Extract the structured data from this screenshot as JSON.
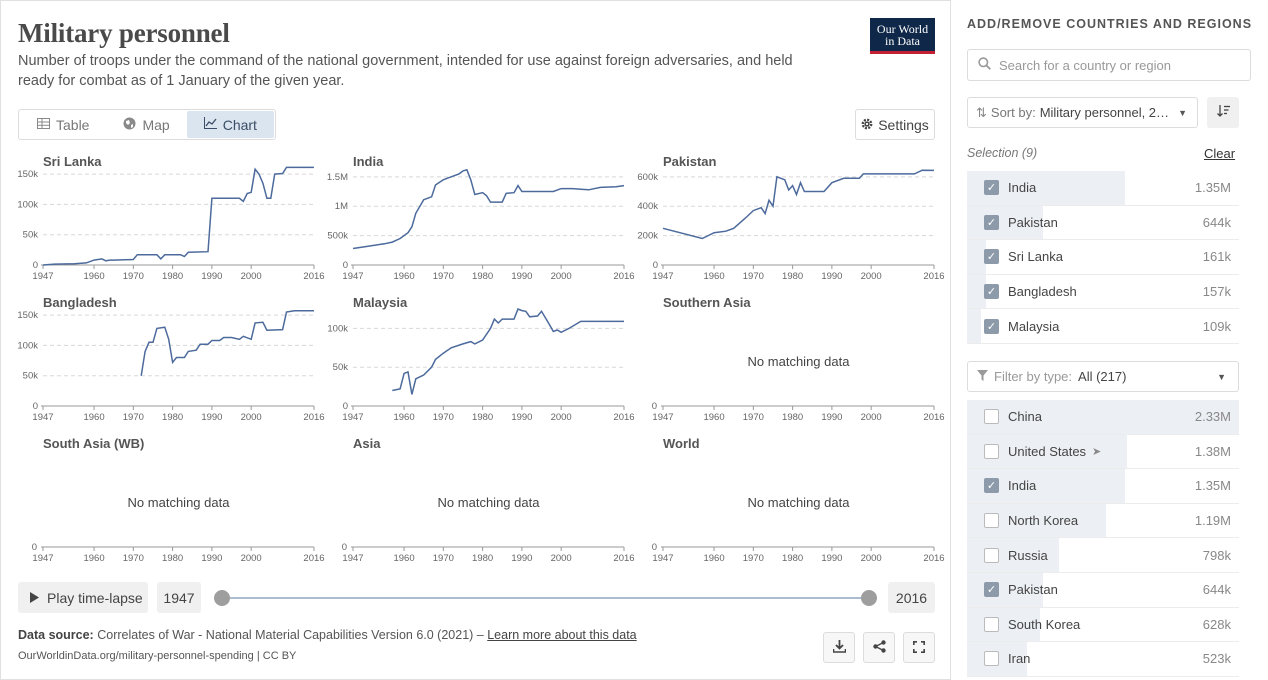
{
  "header": {
    "title": "Military personnel",
    "subtitle": "Number of troops under the command of the national government, intended for use against foreign adversaries, and held ready for combat as of 1 January of the given year.",
    "logo_line1": "Our World",
    "logo_line2": "in Data"
  },
  "tabs": [
    {
      "label": "Table",
      "icon": "table-icon"
    },
    {
      "label": "Map",
      "icon": "globe-icon"
    },
    {
      "label": "Chart",
      "icon": "line-chart-icon",
      "active": true
    }
  ],
  "settings_label": "Settings",
  "no_data_label": "No matching data",
  "chart_data": {
    "type": "line",
    "layout": "small-multiples",
    "x_ticks": [
      "1947",
      "1960",
      "1970",
      "1980",
      "1990",
      "2000",
      "2016"
    ],
    "xlim": [
      1947,
      2016
    ],
    "color": "#4c6a9c",
    "grid": true,
    "panels": [
      {
        "name": "Sri Lanka",
        "ylim": [
          0,
          160000
        ],
        "y_ticks": [
          0,
          50000,
          100000,
          150000
        ],
        "y_tick_labels": [
          "0",
          "50k",
          "100k",
          "150k"
        ],
        "points": [
          [
            1947,
            0
          ],
          [
            1950,
            1500
          ],
          [
            1955,
            2000
          ],
          [
            1958,
            3500
          ],
          [
            1960,
            8000
          ],
          [
            1962,
            10000
          ],
          [
            1963,
            7000
          ],
          [
            1964,
            8000
          ],
          [
            1965,
            8000
          ],
          [
            1970,
            9000
          ],
          [
            1971,
            17000
          ],
          [
            1976,
            17000
          ],
          [
            1977,
            10000
          ],
          [
            1978,
            17000
          ],
          [
            1982,
            17000
          ],
          [
            1983,
            14000
          ],
          [
            1984,
            21000
          ],
          [
            1989,
            22000
          ],
          [
            1990,
            110000
          ],
          [
            1997,
            110000
          ],
          [
            1998,
            105000
          ],
          [
            1999,
            118000
          ],
          [
            2000,
            120000
          ],
          [
            2001,
            158000
          ],
          [
            2002,
            150000
          ],
          [
            2003,
            135000
          ],
          [
            2004,
            110000
          ],
          [
            2005,
            110000
          ],
          [
            2006,
            150000
          ],
          [
            2008,
            151000
          ],
          [
            2009,
            161000
          ],
          [
            2016,
            161000
          ]
        ]
      },
      {
        "name": "India",
        "ylim": [
          0,
          1650000
        ],
        "y_ticks": [
          0,
          500000,
          1000000,
          1500000
        ],
        "y_tick_labels": [
          "0",
          "500k",
          "1M",
          "1.5M"
        ],
        "points": [
          [
            1947,
            280000
          ],
          [
            1950,
            310000
          ],
          [
            1955,
            360000
          ],
          [
            1957,
            390000
          ],
          [
            1959,
            450000
          ],
          [
            1961,
            550000
          ],
          [
            1962,
            650000
          ],
          [
            1963,
            880000
          ],
          [
            1965,
            1110000
          ],
          [
            1967,
            1160000
          ],
          [
            1968,
            1360000
          ],
          [
            1970,
            1450000
          ],
          [
            1972,
            1500000
          ],
          [
            1974,
            1550000
          ],
          [
            1975,
            1600000
          ],
          [
            1976,
            1620000
          ],
          [
            1977,
            1450000
          ],
          [
            1978,
            1200000
          ],
          [
            1980,
            1230000
          ],
          [
            1981,
            1180000
          ],
          [
            1982,
            1070000
          ],
          [
            1985,
            1070000
          ],
          [
            1986,
            1220000
          ],
          [
            1988,
            1230000
          ],
          [
            1989,
            1350000
          ],
          [
            1990,
            1250000
          ],
          [
            1994,
            1250000
          ],
          [
            1998,
            1250000
          ],
          [
            2000,
            1300000
          ],
          [
            2003,
            1300000
          ],
          [
            2005,
            1290000
          ],
          [
            2007,
            1280000
          ],
          [
            2010,
            1320000
          ],
          [
            2014,
            1330000
          ],
          [
            2016,
            1350000
          ]
        ]
      },
      {
        "name": "Pakistan",
        "ylim": [
          0,
          660000
        ],
        "y_ticks": [
          0,
          200000,
          400000,
          600000
        ],
        "y_tick_labels": [
          "0",
          "200k",
          "400k",
          "600k"
        ],
        "points": [
          [
            1947,
            250000
          ],
          [
            1957,
            180000
          ],
          [
            1960,
            220000
          ],
          [
            1963,
            230000
          ],
          [
            1965,
            250000
          ],
          [
            1968,
            320000
          ],
          [
            1970,
            370000
          ],
          [
            1972,
            390000
          ],
          [
            1973,
            350000
          ],
          [
            1974,
            440000
          ],
          [
            1975,
            400000
          ],
          [
            1976,
            600000
          ],
          [
            1978,
            580000
          ],
          [
            1979,
            510000
          ],
          [
            1980,
            540000
          ],
          [
            1981,
            480000
          ],
          [
            1982,
            560000
          ],
          [
            1983,
            500000
          ],
          [
            1988,
            500000
          ],
          [
            1990,
            560000
          ],
          [
            1993,
            590000
          ],
          [
            1997,
            590000
          ],
          [
            1998,
            620000
          ],
          [
            2003,
            620000
          ],
          [
            2011,
            620000
          ],
          [
            2013,
            645000
          ],
          [
            2016,
            644000
          ]
        ]
      },
      {
        "name": "Bangladesh",
        "ylim": [
          0,
          160000
        ],
        "y_ticks": [
          0,
          50000,
          100000,
          150000
        ],
        "y_tick_labels": [
          "0",
          "50k",
          "100k",
          "150k"
        ],
        "points": [
          [
            1972,
            50000
          ],
          [
            1973,
            90000
          ],
          [
            1974,
            105000
          ],
          [
            1975,
            105000
          ],
          [
            1976,
            128000
          ],
          [
            1978,
            130000
          ],
          [
            1979,
            110000
          ],
          [
            1980,
            72000
          ],
          [
            1981,
            80000
          ],
          [
            1983,
            80000
          ],
          [
            1984,
            90000
          ],
          [
            1986,
            92000
          ],
          [
            1987,
            102000
          ],
          [
            1989,
            102000
          ],
          [
            1990,
            108000
          ],
          [
            1992,
            108000
          ],
          [
            1993,
            113000
          ],
          [
            1995,
            113000
          ],
          [
            1997,
            110000
          ],
          [
            1998,
            115000
          ],
          [
            2000,
            110000
          ],
          [
            2001,
            137000
          ],
          [
            2003,
            138000
          ],
          [
            2004,
            125000
          ],
          [
            2008,
            126000
          ],
          [
            2009,
            155000
          ],
          [
            2011,
            157000
          ],
          [
            2016,
            157000
          ]
        ]
      },
      {
        "name": "Malaysia",
        "ylim": [
          0,
          125000
        ],
        "y_ticks": [
          0,
          50000,
          100000
        ],
        "y_tick_labels": [
          "0",
          "50k",
          "100k"
        ],
        "points": [
          [
            1957,
            20000
          ],
          [
            1959,
            22000
          ],
          [
            1960,
            42000
          ],
          [
            1961,
            44000
          ],
          [
            1962,
            15000
          ],
          [
            1963,
            35000
          ],
          [
            1965,
            40000
          ],
          [
            1967,
            50000
          ],
          [
            1968,
            60000
          ],
          [
            1970,
            68000
          ],
          [
            1972,
            75000
          ],
          [
            1975,
            80000
          ],
          [
            1977,
            83000
          ],
          [
            1978,
            80000
          ],
          [
            1980,
            85000
          ],
          [
            1982,
            100000
          ],
          [
            1983,
            112000
          ],
          [
            1984,
            107000
          ],
          [
            1985,
            112000
          ],
          [
            1988,
            112000
          ],
          [
            1989,
            125000
          ],
          [
            1990,
            123000
          ],
          [
            1991,
            122000
          ],
          [
            1992,
            115000
          ],
          [
            1994,
            116000
          ],
          [
            1995,
            122000
          ],
          [
            1997,
            105000
          ],
          [
            1998,
            96000
          ],
          [
            1999,
            98000
          ],
          [
            2000,
            95000
          ],
          [
            2002,
            100000
          ],
          [
            2005,
            109000
          ],
          [
            2010,
            109000
          ],
          [
            2016,
            109000
          ]
        ]
      },
      {
        "name": "Southern Asia",
        "nodata": true
      },
      {
        "name": "South Asia (WB)",
        "nodata": true
      },
      {
        "name": "Asia",
        "nodata": true
      },
      {
        "name": "World",
        "nodata": true
      }
    ]
  },
  "timeline": {
    "play_label": "Play time-lapse",
    "start_year": "1947",
    "end_year": "2016"
  },
  "footer": {
    "source_label": "Data source:",
    "source_text": "Correlates of War - National Material Capabilities Version 6.0 (2021) –",
    "learn_more": "Learn more about this data",
    "url": "OurWorldinData.org/military-personnel-spending | CC BY"
  },
  "sidebar": {
    "heading": "ADD/REMOVE COUNTRIES AND REGIONS",
    "search_placeholder": "Search for a country or region",
    "sort_label": "Sort by:",
    "sort_value": "Military personnel, 2…",
    "selection_label": "Selection (9)",
    "clear_label": "Clear",
    "selected": [
      {
        "name": "India",
        "value": "1.35M",
        "share": 0.58
      },
      {
        "name": "Pakistan",
        "value": "644k",
        "share": 0.28
      },
      {
        "name": "Sri Lanka",
        "value": "161k",
        "share": 0.07
      },
      {
        "name": "Bangladesh",
        "value": "157k",
        "share": 0.07
      },
      {
        "name": "Malaysia",
        "value": "109k",
        "share": 0.05
      }
    ],
    "filter_label": "Filter by type:",
    "filter_value": "All (217)",
    "entities": [
      {
        "name": "China",
        "value": "2.33M",
        "checked": false,
        "share": 1.0
      },
      {
        "name": "United States",
        "value": "1.38M",
        "checked": false,
        "share": 0.59,
        "pin": true
      },
      {
        "name": "India",
        "value": "1.35M",
        "checked": true,
        "share": 0.58
      },
      {
        "name": "North Korea",
        "value": "1.19M",
        "checked": false,
        "share": 0.51
      },
      {
        "name": "Russia",
        "value": "798k",
        "checked": false,
        "share": 0.34
      },
      {
        "name": "Pakistan",
        "value": "644k",
        "checked": true,
        "share": 0.28
      },
      {
        "name": "South Korea",
        "value": "628k",
        "checked": false,
        "share": 0.27
      },
      {
        "name": "Iran",
        "value": "523k",
        "checked": false,
        "share": 0.22
      }
    ]
  }
}
